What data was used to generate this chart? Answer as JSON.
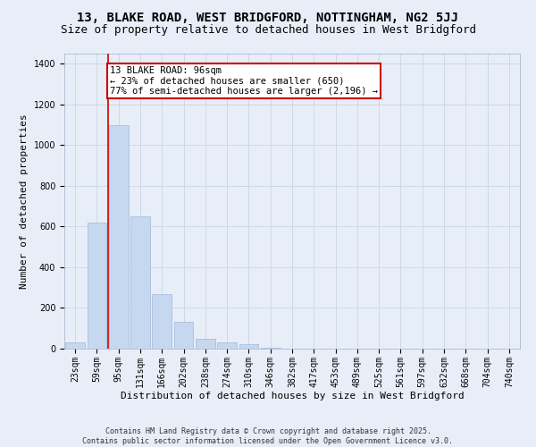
{
  "title1": "13, BLAKE ROAD, WEST BRIDGFORD, NOTTINGHAM, NG2 5JJ",
  "title2": "Size of property relative to detached houses in West Bridgford",
  "xlabel": "Distribution of detached houses by size in West Bridgford",
  "ylabel": "Number of detached properties",
  "categories": [
    "23sqm",
    "59sqm",
    "95sqm",
    "131sqm",
    "166sqm",
    "202sqm",
    "238sqm",
    "274sqm",
    "310sqm",
    "346sqm",
    "382sqm",
    "417sqm",
    "453sqm",
    "489sqm",
    "525sqm",
    "561sqm",
    "597sqm",
    "632sqm",
    "668sqm",
    "704sqm",
    "740sqm"
  ],
  "values": [
    30,
    620,
    1100,
    650,
    270,
    130,
    50,
    30,
    20,
    5,
    2,
    1,
    0,
    0,
    0,
    0,
    0,
    0,
    0,
    0,
    0
  ],
  "bar_color": "#c5d8f0",
  "bar_edgecolor": "#a0b8d8",
  "annotation_text": "13 BLAKE ROAD: 96sqm\n← 23% of detached houses are smaller (650)\n77% of semi-detached houses are larger (2,196) →",
  "annotation_box_color": "#ffffff",
  "annotation_box_edgecolor": "#cc0000",
  "vline_color": "#cc0000",
  "ylim": [
    0,
    1450
  ],
  "yticks": [
    0,
    200,
    400,
    600,
    800,
    1000,
    1200,
    1400
  ],
  "grid_color": "#d0d8e8",
  "bg_color": "#e8eef8",
  "footer": "Contains HM Land Registry data © Crown copyright and database right 2025.\nContains public sector information licensed under the Open Government Licence v3.0.",
  "title_fontsize": 10,
  "subtitle_fontsize": 9,
  "axis_label_fontsize": 8,
  "tick_fontsize": 7,
  "footer_fontsize": 6,
  "annotation_fontsize": 7.5
}
